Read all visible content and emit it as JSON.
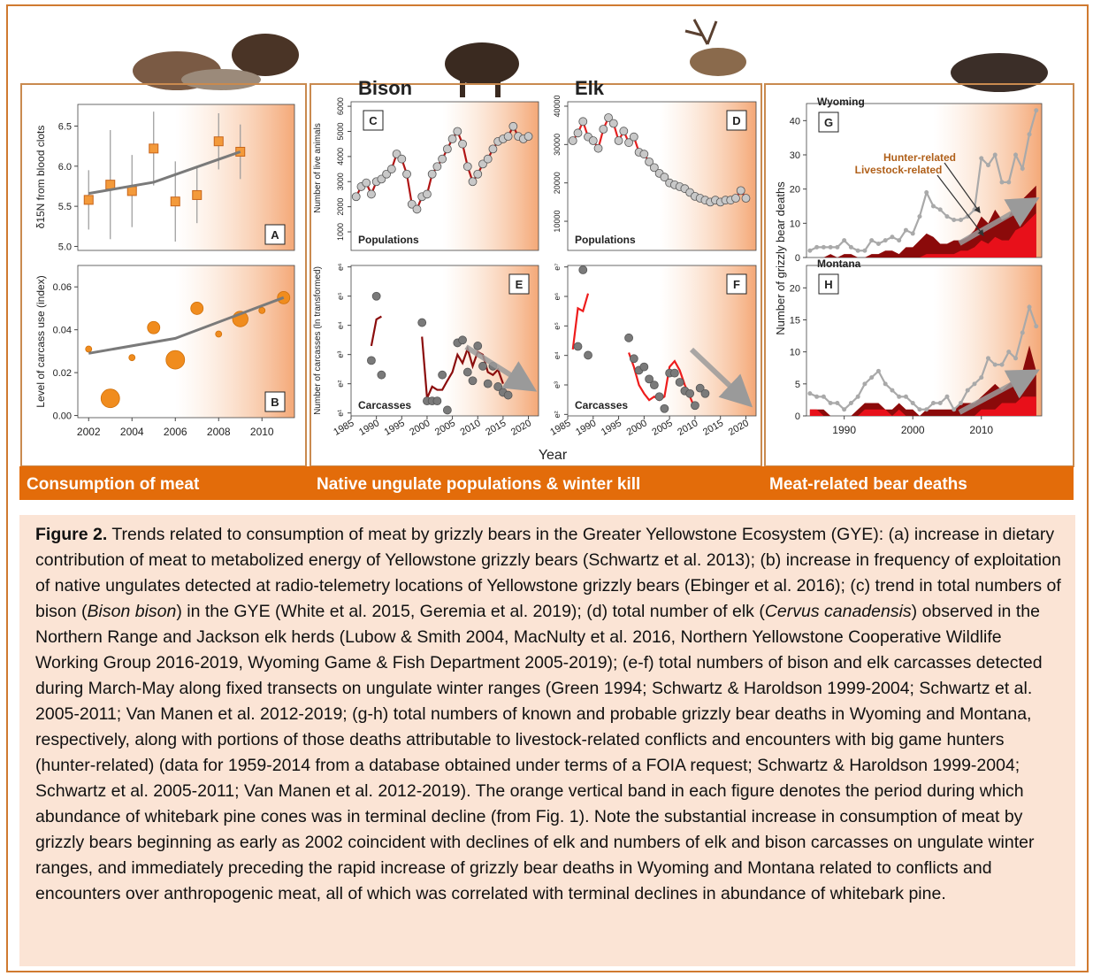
{
  "chart_data": [
    {
      "type": "scatter",
      "panel_label": "A",
      "ylabel": "δ15N from blood clots",
      "x": [
        2002,
        2003,
        2004,
        2005,
        2006,
        2007,
        2008,
        2009
      ],
      "series": [
        {
          "style": "markers",
          "marker": "square",
          "color": "#f39a3b",
          "values": [
            5.58,
            5.77,
            5.69,
            6.22,
            5.56,
            5.64,
            6.31,
            6.18
          ],
          "errors": [
            0.37,
            0.68,
            0.45,
            0.46,
            0.5,
            0.35,
            0.35,
            0.34
          ]
        },
        {
          "style": "line",
          "color": "#7a7a7a",
          "x": [
            2002,
            2005,
            2009
          ],
          "values": [
            5.66,
            5.8,
            6.18
          ]
        }
      ],
      "xlim": [
        2001.5,
        2011.5
      ],
      "ylim": [
        4.95,
        6.77
      ],
      "yticks": [
        {
          "value": 5,
          "label": "5.0"
        },
        5.5,
        {
          "value": 6,
          "label": "6.0"
        },
        6.5
      ],
      "shaded_from": 2006
    },
    {
      "type": "bubble",
      "panel_label": "B",
      "ylabel": "Level of carcass use (index)",
      "x": [
        2002,
        2003,
        2004,
        2005,
        2006,
        2007,
        2008,
        2009,
        2010,
        2011
      ],
      "series": [
        {
          "style": "markers",
          "marker": "circle",
          "color": "#f08c1e",
          "values": [
            0.031,
            0.008,
            0.027,
            0.041,
            0.026,
            0.05,
            0.038,
            0.045,
            0.049,
            0.055
          ],
          "sizes": [
            1,
            3,
            1,
            2,
            3,
            2,
            1,
            2.5,
            1,
            2
          ]
        },
        {
          "style": "line",
          "color": "#7a7a7a",
          "x": [
            2002,
            2006,
            2011
          ],
          "values": [
            0.029,
            0.036,
            0.055
          ]
        }
      ],
      "xlim": [
        2001.5,
        2011.5
      ],
      "ylim": [
        -0.001,
        0.07
      ],
      "xticks": [
        2002,
        2004,
        2006,
        2008,
        2010
      ],
      "yticks": [
        {
          "value": 0,
          "label": "0.00"
        },
        0.02,
        0.04,
        0.06
      ],
      "shaded_from": 2006
    },
    {
      "type": "line",
      "panel_label": "C",
      "title": "Bison",
      "annotation": "Populations",
      "ylabel": "Number of live animals",
      "x": [
        1986,
        1987,
        1988,
        1989,
        1990,
        1991,
        1992,
        1993,
        1994,
        1995,
        1996,
        1997,
        1998,
        1999,
        2000,
        2001,
        2002,
        2003,
        2004,
        2005,
        2006,
        2007,
        2008,
        2009,
        2010,
        2011,
        2012,
        2013,
        2014,
        2015,
        2016,
        2017,
        2018,
        2019,
        2020
      ],
      "series": [
        {
          "style": "line+markers",
          "marker": "circle",
          "color": "#b01515",
          "marker_color": "#c8c8c8",
          "values": [
            2400,
            2800,
            2950,
            2500,
            3000,
            3100,
            3300,
            3500,
            4100,
            3900,
            3300,
            2100,
            1900,
            2400,
            2500,
            3300,
            3600,
            3900,
            4300,
            4700,
            5000,
            4500,
            3600,
            3000,
            3300,
            3700,
            3900,
            4300,
            4600,
            4700,
            4800,
            5200,
            4800,
            4700,
            4800
          ]
        }
      ],
      "xlim": [
        1985,
        2022
      ],
      "ylim": [
        260,
        6180
      ],
      "yticks": [
        1000,
        2000,
        3000,
        4000,
        5000,
        6000
      ],
      "shaded_from": 2003
    },
    {
      "type": "line",
      "panel_label": "D",
      "title": "Elk",
      "annotation": "Populations",
      "x": [
        1986,
        1987,
        1988,
        1989,
        1990,
        1991,
        1992,
        1993,
        1994,
        1995,
        1996,
        1997,
        1998,
        1999,
        2000,
        2001,
        2002,
        2003,
        2004,
        2005,
        2006,
        2007,
        2008,
        2009,
        2010,
        2011,
        2012,
        2013,
        2014,
        2015,
        2016,
        2017,
        2018,
        2019,
        2020
      ],
      "series": [
        {
          "style": "line+markers",
          "marker": "circle",
          "color": "#e52020",
          "marker_color": "#c8c8c8",
          "values": [
            31000,
            33000,
            36000,
            32000,
            31000,
            29000,
            34000,
            37000,
            35500,
            31000,
            33500,
            30500,
            32000,
            28000,
            27500,
            25500,
            24000,
            22500,
            21500,
            20000,
            19500,
            19000,
            18500,
            17500,
            16500,
            16000,
            15500,
            15000,
            15500,
            15000,
            15500,
            15500,
            16000,
            18000,
            16000
          ]
        }
      ],
      "xlim": [
        1985,
        2022
      ],
      "ylim": [
        2400,
        41150
      ],
      "yticks": [
        10000,
        20000,
        30000,
        40000
      ],
      "shaded_from": 2003
    },
    {
      "type": "scatter",
      "panel_label": "E",
      "annotation": "Carcasses",
      "ylabel": "Number of carcasses (ln transformed)",
      "log": true,
      "x": [
        1989,
        1990,
        1991,
        1999,
        2000,
        2001,
        2002,
        2003,
        2004,
        2006,
        2007,
        2008,
        2009,
        2010,
        2011,
        2012,
        2013,
        2014,
        2015,
        2016
      ],
      "series": [
        {
          "style": "line",
          "color": "#8b0d0d",
          "x": [
            1989,
            1990,
            1991,
            1992,
            1999,
            2000,
            2001,
            2002,
            2003,
            2004,
            2005,
            2006,
            2007,
            2008,
            2009,
            2010,
            2011,
            2012,
            2013,
            2014,
            2015
          ],
          "values": [
            27,
            67,
            74,
            null,
            37,
            4.5,
            6.7,
            6,
            6,
            8.2,
            11,
            20,
            15,
            24.5,
            13.5,
            22,
            20,
            11,
            10,
            12,
            7.4
          ]
        },
        {
          "style": "markers",
          "marker": "circle",
          "color": "#7a7a7a",
          "values": [
            16.4,
            148,
            10,
            60,
            4.1,
            4.1,
            4.1,
            10,
            3,
            30,
            33,
            11,
            8.2,
            27,
            13.5,
            7.4,
            13.5,
            6.7,
            5.5,
            5
          ]
        }
      ],
      "xlim": [
        1985,
        2022
      ],
      "ylim": [
        2.46,
        424
      ],
      "xticks": [
        1985,
        1990,
        1995,
        2000,
        2005,
        2010,
        2015,
        2020
      ],
      "yticks": [
        {
          "value": 2.718,
          "label": "e¹"
        },
        {
          "value": 7.389,
          "label": "e²"
        },
        {
          "value": 20.09,
          "label": "e³"
        },
        {
          "value": 54.6,
          "label": "e⁴"
        },
        {
          "value": 148.4,
          "label": "e⁵"
        },
        {
          "value": 403.4,
          "label": "e⁶"
        }
      ],
      "shaded_from": 2003
    },
    {
      "type": "scatter",
      "panel_label": "F",
      "annotation": "Carcasses",
      "log": true,
      "x": [
        1987,
        1988,
        1989,
        1997,
        1998,
        1999,
        2000,
        2001,
        2002,
        2003,
        2004,
        2005,
        2006,
        2007,
        2008,
        2009,
        2010,
        2011,
        2012
      ],
      "series": [
        {
          "style": "line",
          "color": "#ee1c1c",
          "x": [
            1986,
            1987,
            1988,
            1989,
            1990,
            1997,
            1998,
            1999,
            2000,
            2001,
            2002,
            2003,
            2004,
            2005,
            2006,
            2007,
            2008,
            2009,
            2010
          ],
          "values": [
            67,
            270,
            245,
            446,
            null,
            60,
            37,
            20,
            15,
            12,
            13.5,
            12,
            13.5,
            37,
            45,
            33,
            20,
            13.5,
            9
          ]
        },
        {
          "style": "markers",
          "marker": "circle",
          "color": "#7a7a7a",
          "values": [
            74,
            992,
            55,
            99,
            49,
            33,
            37,
            24.5,
            20,
            13.5,
            9,
            30,
            30,
            22,
            16.4,
            15,
            10,
            18,
            15
          ]
        }
      ],
      "xlim": [
        1985,
        2022
      ],
      "ylim": [
        7.03,
        1153
      ],
      "xticks": [
        1985,
        1990,
        1995,
        2000,
        2005,
        2010,
        2015,
        2020
      ],
      "yticks": [
        {
          "value": 7.389,
          "label": "e²"
        },
        {
          "value": 20.09,
          "label": "e³"
        },
        {
          "value": 54.6,
          "label": "e⁴"
        },
        {
          "value": 148.4,
          "label": "e⁵"
        },
        {
          "value": 403.4,
          "label": "e⁶"
        },
        {
          "value": 1096.6,
          "label": "e⁷"
        }
      ],
      "shaded_from": 2003
    },
    {
      "type": "area",
      "panel_label": "G",
      "annotation": "Wyoming",
      "x": [
        1985,
        1986,
        1987,
        1988,
        1989,
        1990,
        1991,
        1992,
        1993,
        1994,
        1995,
        1996,
        1997,
        1998,
        1999,
        2000,
        2001,
        2002,
        2003,
        2004,
        2005,
        2006,
        2007,
        2008,
        2009,
        2010,
        2011,
        2012,
        2013,
        2014,
        2015,
        2016,
        2017,
        2018
      ],
      "series": [
        {
          "name": "Hunter-related",
          "style": "area",
          "color": "#8b0a0a",
          "values": [
            0,
            0,
            0,
            1,
            0,
            1,
            1,
            0,
            0,
            1,
            1,
            2,
            2,
            1,
            3,
            3,
            5,
            7,
            6,
            4,
            4,
            5,
            5,
            6,
            8,
            12,
            10,
            14,
            11,
            12,
            16,
            17,
            19,
            21
          ]
        },
        {
          "name": "Livestock-related",
          "style": "area",
          "color": "#e8101a",
          "values": [
            0,
            0,
            0,
            0,
            0,
            0,
            0,
            0,
            0,
            0,
            0,
            0,
            0,
            0,
            0,
            0,
            0,
            1,
            1,
            1,
            1,
            1,
            2,
            2,
            3,
            5,
            4,
            6,
            5,
            5,
            8,
            9,
            11,
            13
          ]
        },
        {
          "style": "line+markers",
          "marker": "circle",
          "color": "#a9a9a9",
          "marker_color": "#a9a9a9",
          "values": [
            2,
            3,
            3,
            3,
            3,
            5,
            3,
            2,
            2,
            5,
            4,
            5,
            6,
            5,
            8,
            7,
            12,
            19,
            15,
            14,
            12,
            11,
            11,
            12,
            14,
            29,
            27,
            30,
            22,
            22,
            30,
            26,
            36,
            43
          ]
        }
      ],
      "xlim": [
        1984.5,
        2018.8
      ],
      "ylim": [
        0,
        45
      ],
      "yticks": [
        0,
        10,
        20,
        30,
        40
      ],
      "shaded_from": 2003
    },
    {
      "type": "area",
      "panel_label": "H",
      "annotation": "Montana",
      "x": [
        1985,
        1986,
        1987,
        1988,
        1989,
        1990,
        1991,
        1992,
        1993,
        1994,
        1995,
        1996,
        1997,
        1998,
        1999,
        2000,
        2001,
        2002,
        2003,
        2004,
        2005,
        2006,
        2007,
        2008,
        2009,
        2010,
        2011,
        2012,
        2013,
        2014,
        2015,
        2016,
        2017,
        2018
      ],
      "series": [
        {
          "style": "area",
          "color": "#8b0a0a",
          "values": [
            1,
            1,
            1,
            0,
            0,
            0,
            0,
            1,
            2,
            2,
            2,
            1,
            1,
            2,
            1,
            1,
            0,
            1,
            1,
            1,
            1,
            1,
            2,
            2,
            2,
            3,
            4,
            5,
            4,
            5,
            6,
            7,
            11,
            7
          ]
        },
        {
          "style": "area",
          "color": "#e8101a",
          "values": [
            1,
            1,
            0,
            0,
            0,
            0,
            0,
            0,
            1,
            1,
            1,
            1,
            0,
            1,
            0,
            0,
            0,
            0,
            0,
            0,
            0,
            0,
            0,
            0,
            0,
            1,
            1,
            1,
            2,
            2,
            2,
            3,
            3,
            3
          ]
        },
        {
          "style": "line+markers",
          "marker": "circle",
          "color": "#a9a9a9",
          "marker_color": "#a9a9a9",
          "values": [
            3.5,
            3,
            3,
            2,
            2,
            1,
            2,
            3,
            5,
            6,
            7,
            5,
            4,
            3,
            3,
            2,
            1,
            1,
            2,
            2,
            3,
            1,
            2,
            4,
            5,
            6,
            9,
            8,
            8,
            10,
            9,
            13,
            17,
            14
          ]
        }
      ],
      "xlim": [
        1984.5,
        2018.8
      ],
      "ylim": [
        0,
        23.5
      ],
      "xticks": [
        1990,
        2000,
        2010
      ],
      "yticks": [
        0,
        5,
        10,
        15,
        20
      ],
      "shaded_from": 2003
    }
  ],
  "shared": {
    "xlabel": "Year",
    "ylabel": "Number of grizzly bear deaths"
  },
  "sections": [
    "Consumption of meat",
    "Native ungulate populations & winter kill",
    "Meat-related bear deaths"
  ],
  "caption": {
    "label": "Figure 2.",
    "parts": [
      {
        "text": " Trends related to consumption of meat by grizzly bears in the Greater Yellowstone Ecosystem (GYE): (a) increase in dietary contribution of meat to metabolized energy of Yellowstone grizzly bears (Schwartz et al. 2013); (b) increase in frequency of exploitation of native ungulates detected at radio-telemetry locations of Yellowstone grizzly bears (Ebinger et al. 2016); (c) trend in total numbers of bison ("
      },
      {
        "text": "Bison bison",
        "italic": true
      },
      {
        "text": ") in the GYE (White et al. 2015, Geremia et al. 2019); (d) total number of elk ("
      },
      {
        "text": "Cervus canadensis",
        "italic": true
      },
      {
        "text": ") observed in the Northern Range and Jackson elk herds (Lubow & Smith 2004, MacNulty et al. 2016,  Northern Yellowstone Cooperative Wildlife Working Group 2016-2019,  Wyoming Game & Fish Department 2005-2019); (e-f) total numbers of bison and elk carcasses detected during March-May along fixed transects on ungulate winter ranges (Green 1994; Schwartz & Haroldson 1999-2004; Schwartz et al. 2005-2011; Van Manen et al. 2012-2019; (g-h) total numbers of known and probable grizzly bear deaths in Wyoming and Montana, respectively, along with portions of those deaths attributable to livestock-related conflicts and encounters with big game hunters (hunter-related) (data for 1959-2014 from a database obtained under terms of a FOIA request; Schwartz & Haroldson 1999-2004; Schwartz et al. 2005-2011; Van Manen et al. 2012-2019). The orange vertical band in each figure denotes the period during which abundance of whitebark pine cones was in terminal decline (from Fig. 1). Note the substantial increase in consumption of meat by grizzly bears beginning as early as 2002 coincident with declines of elk and numbers of elk and bison carcasses on ungulate winter ranges,  and immediately preceding the rapid increase of grizzly bear deaths in Wyoming and Montana related to conflicts and encounters over anthropogenic meat, all of which was correlated with terminal declines in abundance of whitebark pine."
      }
    ]
  }
}
